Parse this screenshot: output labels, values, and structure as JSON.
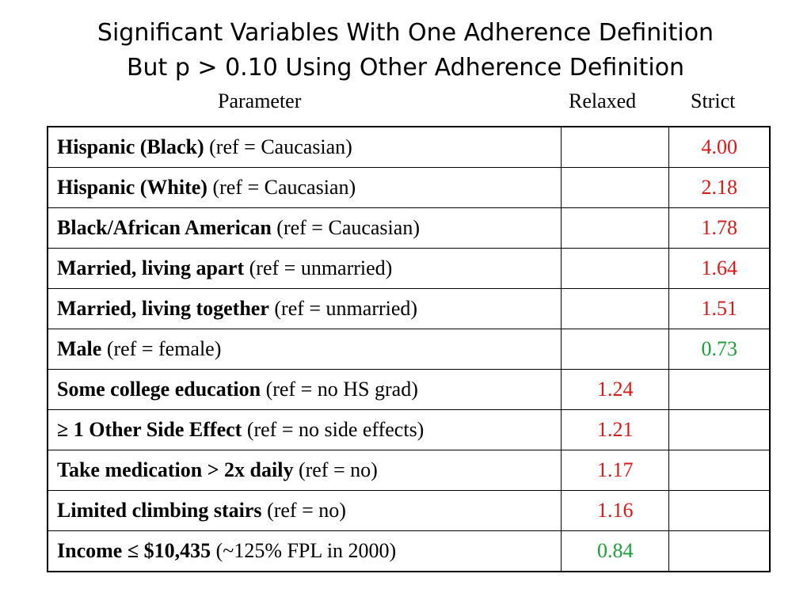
{
  "title": {
    "line1": "Significant Variables With One Adherence Definition",
    "line2": "But p > 0.10 Using Other Adherence Definition"
  },
  "headers": {
    "parameter": "Parameter",
    "relaxed": "Relaxed",
    "strict": "Strict"
  },
  "colors": {
    "increase": "#d91a1a",
    "decrease": "#1e9e3a"
  },
  "rows": [
    {
      "bold": "Hispanic (Black)",
      "ref": " (ref = Caucasian)",
      "relaxed": "",
      "strict": "4.00",
      "relaxed_color": "",
      "strict_color": "red"
    },
    {
      "bold": "Hispanic (White)",
      "ref": " (ref = Caucasian)",
      "relaxed": "",
      "strict": "2.18",
      "relaxed_color": "",
      "strict_color": "red"
    },
    {
      "bold": "Black/African American",
      "ref": " (ref = Caucasian)",
      "relaxed": "",
      "strict": "1.78",
      "relaxed_color": "",
      "strict_color": "red"
    },
    {
      "bold": "Married, living apart",
      "ref": " (ref = unmarried)",
      "relaxed": "",
      "strict": "1.64",
      "relaxed_color": "",
      "strict_color": "red"
    },
    {
      "bold": "Married, living together",
      "ref": " (ref = unmarried)",
      "relaxed": "",
      "strict": "1.51",
      "relaxed_color": "",
      "strict_color": "red"
    },
    {
      "bold": "Male",
      "ref": " (ref = female)",
      "relaxed": "",
      "strict": "0.73",
      "relaxed_color": "",
      "strict_color": "green"
    },
    {
      "bold": "Some college education",
      "ref": " (ref = no HS grad)",
      "relaxed": "1.24",
      "strict": "",
      "relaxed_color": "red",
      "strict_color": ""
    },
    {
      "bold": "≥ 1 Other Side Effect",
      "ref": " (ref = no side effects)",
      "relaxed": "1.21",
      "strict": "",
      "relaxed_color": "red",
      "strict_color": ""
    },
    {
      "bold": "Take medication > 2x daily",
      "ref": " (ref = no)",
      "relaxed": "1.17",
      "strict": "",
      "relaxed_color": "red",
      "strict_color": ""
    },
    {
      "bold": "Limited climbing stairs",
      "ref": " (ref = no)",
      "relaxed": "1.16",
      "strict": "",
      "relaxed_color": "red",
      "strict_color": ""
    },
    {
      "bold": "Income ≤ $10,435",
      "ref": " (~125% FPL in 2000)",
      "relaxed": "0.84",
      "strict": "",
      "relaxed_color": "green",
      "strict_color": ""
    }
  ]
}
